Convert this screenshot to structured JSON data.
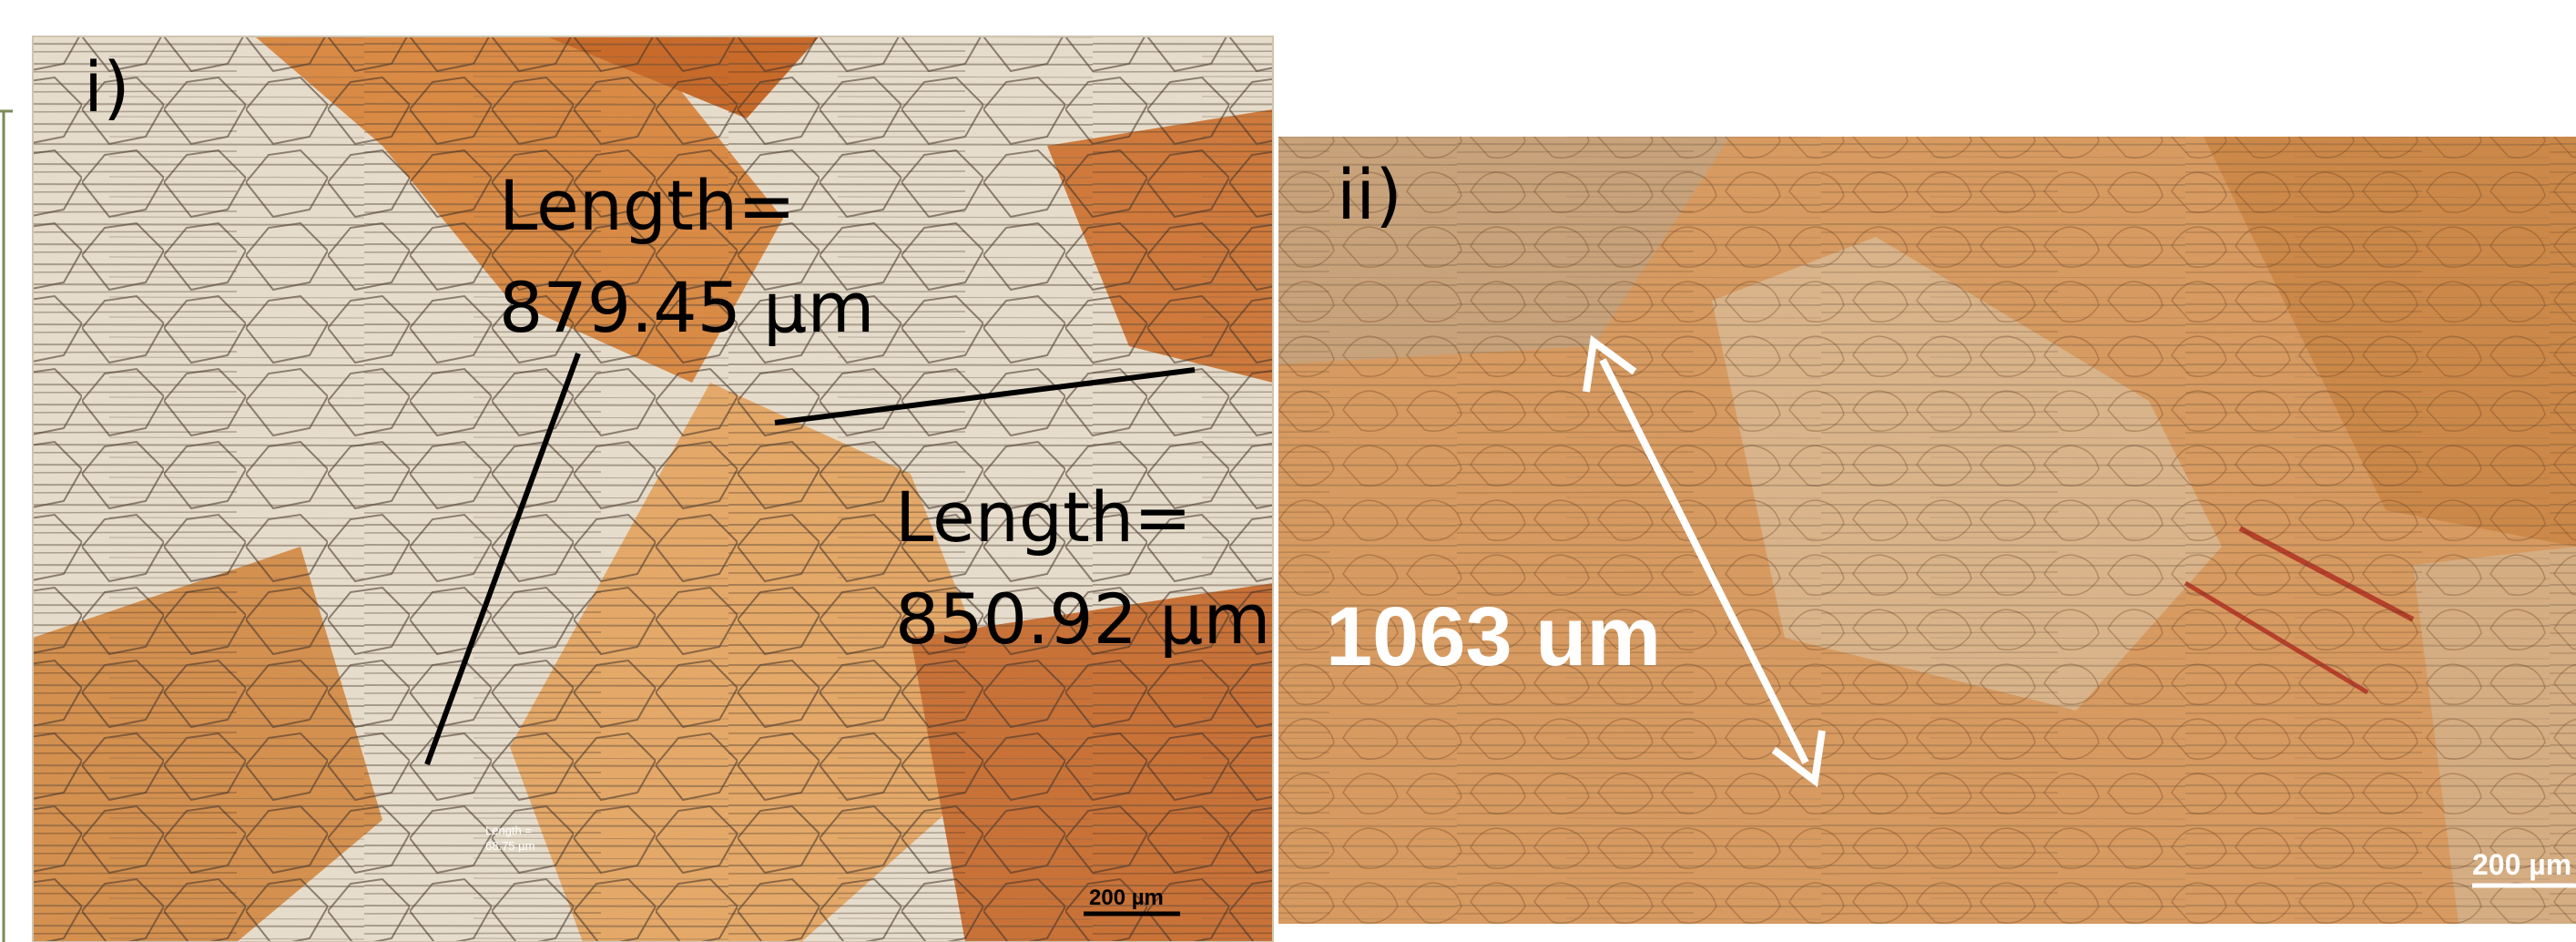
{
  "panel_i": {
    "label": "i)",
    "measure_1": {
      "title": "Length=",
      "value": "879.45 µm"
    },
    "measure_2": {
      "title": "Length=",
      "value": "850.92 µm"
    },
    "small_label": {
      "line1": "Length =",
      "line2": "68.75 µm"
    },
    "scale_bar": "200 µm"
  },
  "panel_ii": {
    "label": "ii)",
    "measure": "1063 um",
    "scale_bar": "200 µm"
  }
}
